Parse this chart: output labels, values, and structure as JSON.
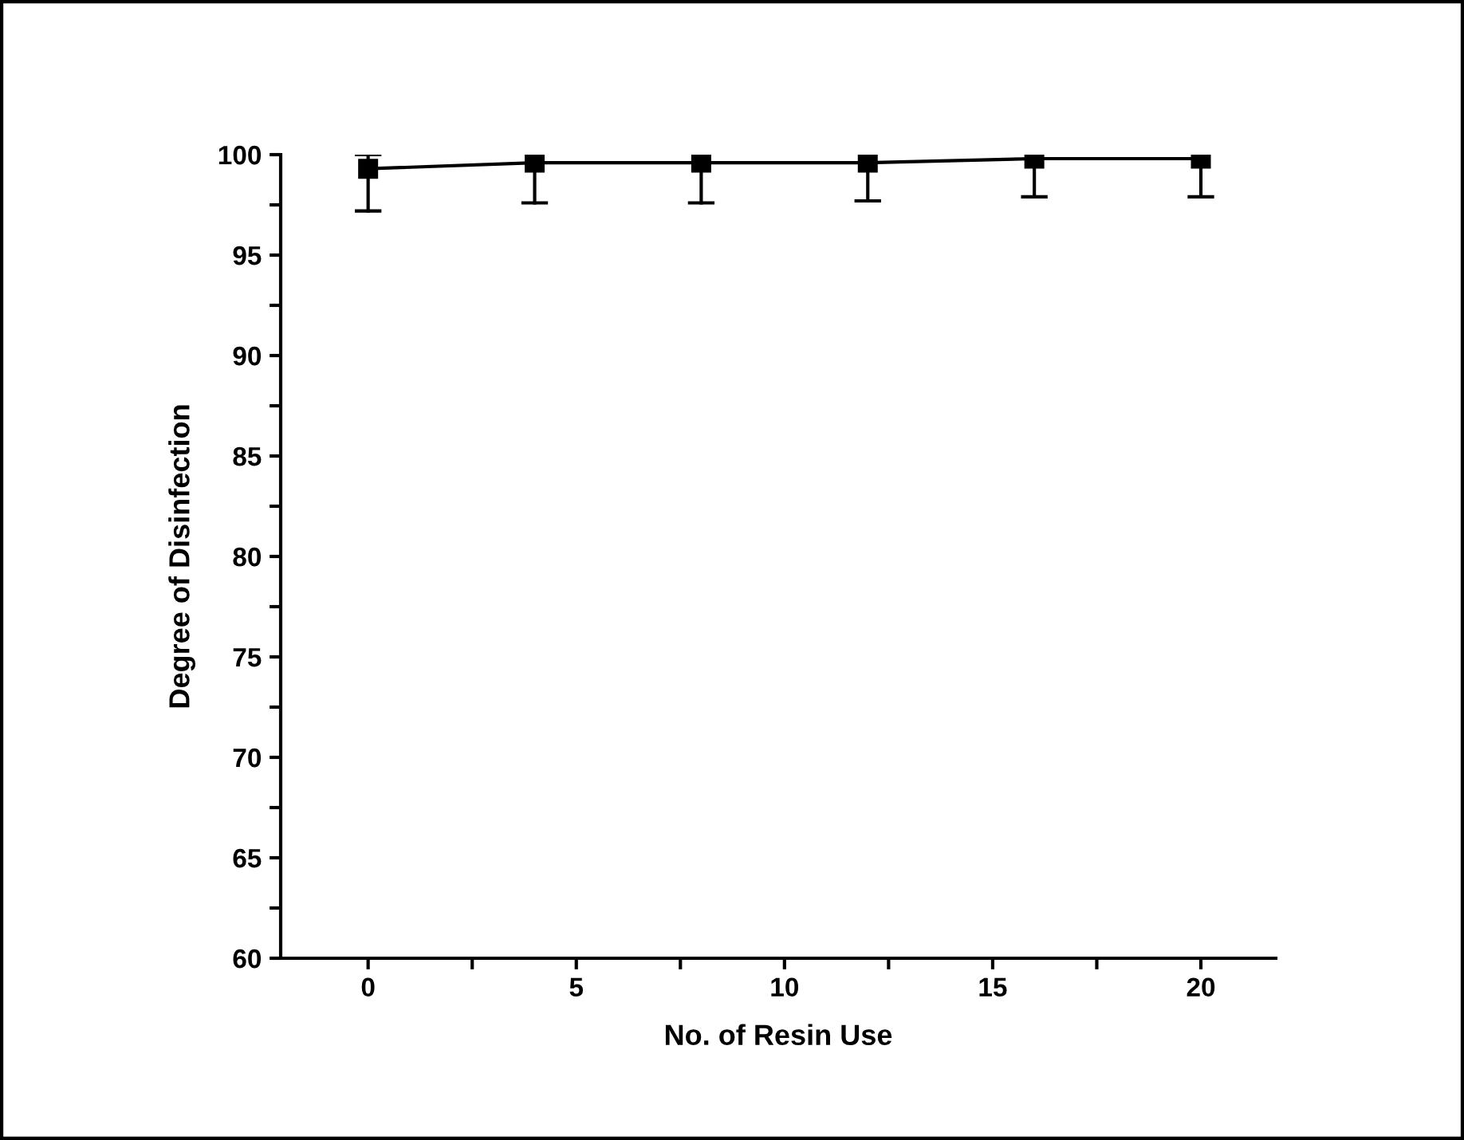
{
  "chart_data": {
    "type": "line",
    "xlabel": "No. of Resin Use",
    "ylabel": "Degree of Disinfection",
    "x": [
      0,
      4,
      8,
      12,
      16,
      20
    ],
    "series": [
      {
        "color": "#000000",
        "values": [
          99.3,
          99.6,
          99.6,
          99.6,
          99.8,
          99.8
        ],
        "errors": [
          [
            97.2,
            100
          ],
          [
            97.6,
            99.6
          ],
          [
            97.6,
            99.6
          ],
          [
            97.7,
            99.6
          ],
          [
            97.9,
            99.8
          ],
          [
            97.9,
            99.8
          ]
        ]
      }
    ],
    "marker": "square",
    "line_style": "solid",
    "grid": false,
    "legend": false,
    "xlim": [
      -2.1,
      21.8
    ],
    "ylim": [
      60,
      100
    ],
    "xticks": [
      0,
      {
        "value": 2.5,
        "label": null
      },
      5,
      {
        "value": 7.5,
        "label": null
      },
      10,
      {
        "value": 12.5,
        "label": null
      },
      15,
      {
        "value": 17.5,
        "label": null
      },
      20
    ],
    "yticks": [
      60,
      {
        "value": 62.5,
        "label": null
      },
      65,
      {
        "value": 67.5,
        "label": null
      },
      70,
      {
        "value": 72.5,
        "label": null
      },
      75,
      {
        "value": 77.5,
        "label": null
      },
      80,
      {
        "value": 82.5,
        "label": null
      },
      85,
      {
        "value": 87.5,
        "label": null
      },
      90,
      {
        "value": 92.5,
        "label": null
      },
      95,
      {
        "value": 97.5,
        "label": null
      },
      100
    ]
  }
}
